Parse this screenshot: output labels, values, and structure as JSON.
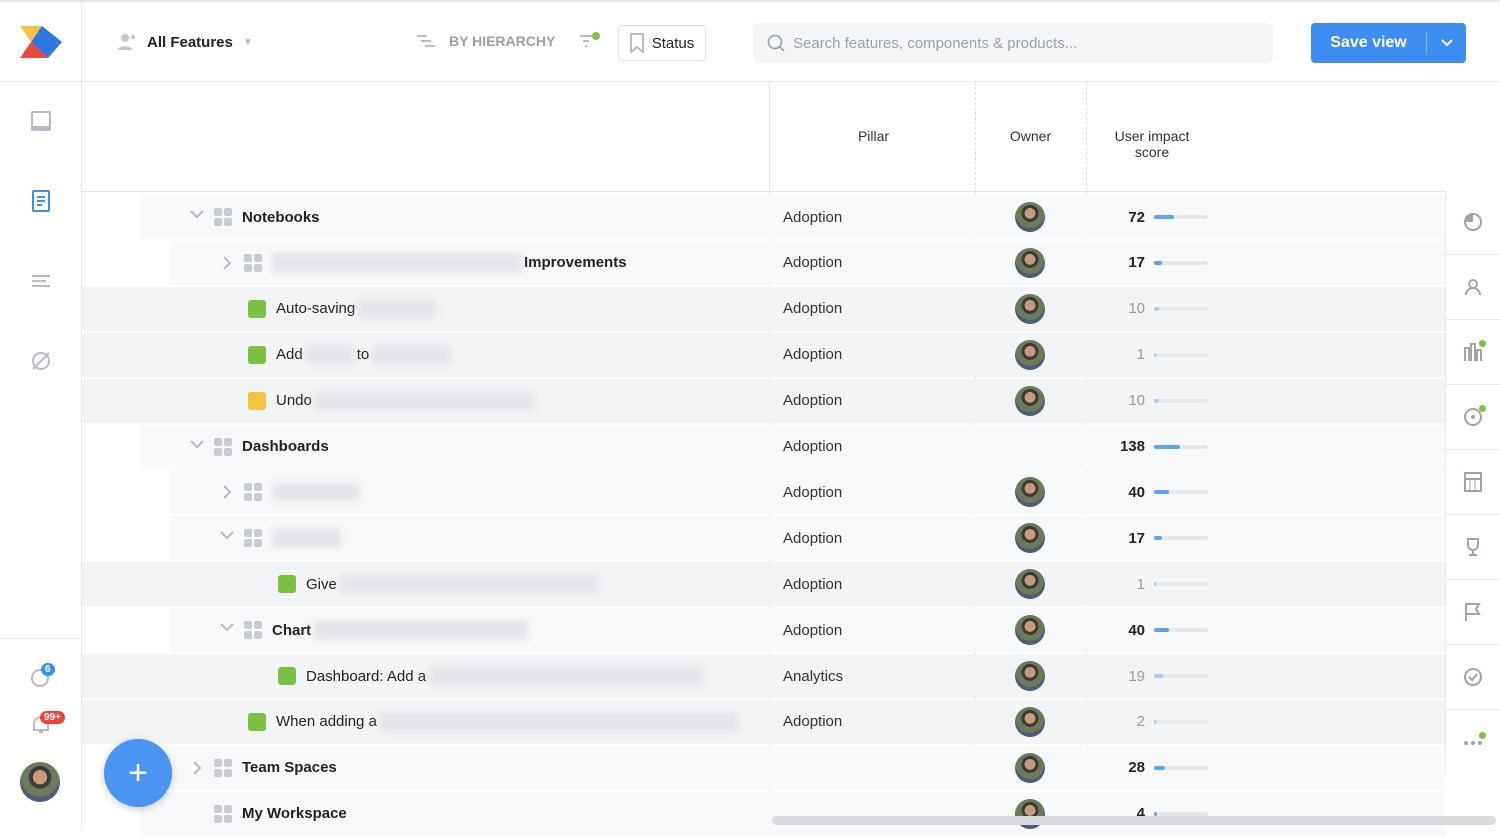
{
  "topbar": {
    "view_name": "All Features",
    "grouping": "BY HIERARCHY",
    "status_label": "Status",
    "search_placeholder": "Search features, components & products...",
    "save_label": "Save view"
  },
  "columns": {
    "pillar": "Pillar",
    "owner": "Owner",
    "score": "User impact score"
  },
  "left_nav": {
    "insights_badge": "6",
    "notifications_badge": "99+"
  },
  "colors": {
    "accent": "#3d8ef0",
    "green_status": "#7cc242",
    "yellow_status": "#f8c142"
  },
  "rows": [
    {
      "level": 0,
      "type": "group",
      "expand": "down",
      "label": "Notebooks",
      "blur_after": 0,
      "pillar": "Adoption",
      "score": "72",
      "fill": 0.37,
      "bold": true
    },
    {
      "level": 1,
      "type": "group",
      "expand": "right",
      "blur_before": 250,
      "label": "Improvements",
      "pillar": "Adoption",
      "score": "17",
      "fill": 0.15,
      "bold": true
    },
    {
      "level": 1,
      "type": "leaf",
      "status": "green",
      "label": "Auto-saving",
      "blur_after": 80,
      "pillar": "Adoption",
      "score": "10",
      "fill": 0.1,
      "bold": false
    },
    {
      "level": 1,
      "type": "leaf",
      "status": "green",
      "label": "Add",
      "mid": "to",
      "blur_after": 80,
      "pillar": "Adoption",
      "score": "1",
      "fill": 0.02,
      "bold": false
    },
    {
      "level": 1,
      "type": "leaf",
      "status": "yellow",
      "label": "Undo",
      "blur_after": 220,
      "pillar": "Adoption",
      "score": "10",
      "fill": 0.1,
      "bold": false
    },
    {
      "level": 0,
      "type": "group",
      "expand": "down",
      "label": "Dashboards",
      "pillar": "Adoption",
      "score": "138",
      "fill": 0.48,
      "bold": true,
      "no_avatar": true
    },
    {
      "level": 1,
      "type": "group",
      "expand": "right",
      "blur_before": 88,
      "label": "",
      "pillar": "Adoption",
      "score": "40",
      "fill": 0.28,
      "bold": true
    },
    {
      "level": 1,
      "type": "group",
      "expand": "down",
      "blur_before": 70,
      "label": "",
      "pillar": "Adoption",
      "score": "17",
      "fill": 0.15,
      "bold": true
    },
    {
      "level": 2,
      "type": "leaf",
      "status": "green",
      "label": "Give",
      "blur_after": 260,
      "pillar": "Adoption",
      "score": "1",
      "fill": 0.02,
      "bold": false
    },
    {
      "level": 1,
      "type": "group",
      "expand": "down",
      "label": "Chart",
      "blur_after": 215,
      "pillar": "Adoption",
      "score": "40",
      "fill": 0.28,
      "bold": true
    },
    {
      "level": 2,
      "type": "leaf",
      "status": "green",
      "label": "Dashboard: Add a",
      "blur_after": 275,
      "pillar": "Analytics",
      "score": "19",
      "fill": 0.16,
      "bold": false
    },
    {
      "level": 1,
      "type": "leaf",
      "status": "green",
      "label": "When adding a",
      "blur_after": 360,
      "pillar": "Adoption",
      "score": "2",
      "fill": 0.03,
      "bold": false
    },
    {
      "level": 0,
      "type": "group",
      "expand": "right",
      "label": "Team Spaces",
      "pillar": "",
      "score": "28",
      "fill": 0.2,
      "bold": true
    },
    {
      "level": 0,
      "type": "group",
      "expand": "none",
      "label": "My Workspace",
      "pillar": "",
      "score": "4",
      "fill": 0.05,
      "bold": true
    }
  ]
}
